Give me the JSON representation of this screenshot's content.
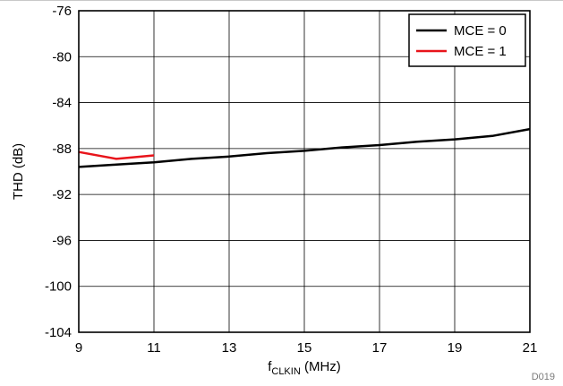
{
  "chart_data": {
    "type": "line",
    "xlabel": "f",
    "xlabel_sub": "CLKIN",
    "xlabel_unit": " (MHz)",
    "ylabel": "THD (dB)",
    "xlim": [
      9,
      21
    ],
    "ylim": [
      -104,
      -76
    ],
    "x_ticks": [
      9,
      11,
      13,
      15,
      17,
      19,
      21
    ],
    "y_ticks": [
      -76,
      -80,
      -84,
      -88,
      -92,
      -96,
      -100,
      -104
    ],
    "grid": true,
    "legend_position": "top-right",
    "series": [
      {
        "name": "MCE = 0",
        "color": "#000000",
        "x": [
          9,
          10,
          11,
          12,
          13,
          14,
          15,
          16,
          17,
          18,
          19,
          20,
          21
        ],
        "y": [
          -89.6,
          -89.4,
          -89.2,
          -88.9,
          -88.7,
          -88.4,
          -88.2,
          -87.9,
          -87.7,
          -87.4,
          -87.2,
          -86.9,
          -86.3
        ]
      },
      {
        "name": "MCE = 1",
        "color": "#e8141b",
        "x": [
          9,
          10,
          11
        ],
        "y": [
          -88.3,
          -88.9,
          -88.6
        ]
      }
    ],
    "footnote": "D019"
  }
}
